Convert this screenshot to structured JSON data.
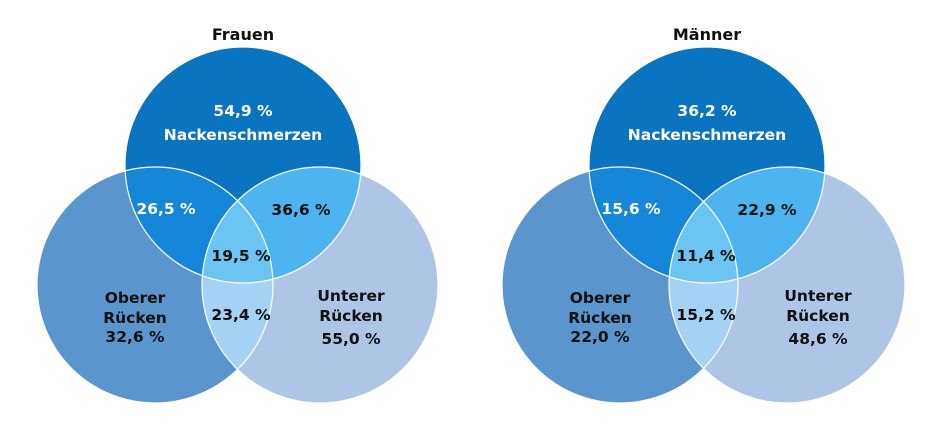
{
  "colors": {
    "neck": "#0a74c1",
    "upper_back": "#5b95ce",
    "lower_back": "#aec5e5",
    "neck_upper": "#1586d8",
    "neck_lower": "#4db4ef",
    "all_three": "#6cc4f3",
    "upper_lower": "#a4d2f4",
    "outline": "#ffffff"
  },
  "panels": [
    {
      "title": "Frauen",
      "neck": {
        "value": "54,9 %",
        "label": "Nackenschmerzen"
      },
      "upper_back": {
        "label_line1": "Oberer",
        "label_line2": "Rücken",
        "value": "32,6 %"
      },
      "lower_back": {
        "label_line1": "Unterer",
        "label_line2": "Rücken",
        "value": "55,0 %"
      },
      "neck_upper": "26,5 %",
      "neck_lower": "36,6 %",
      "all_three": "19,5 %",
      "upper_lower": "23,4 %"
    },
    {
      "title": "Männer",
      "neck": {
        "value": "36,2 %",
        "label": "Nackenschmerzen"
      },
      "upper_back": {
        "label_line1": "Oberer",
        "label_line2": "Rücken",
        "value": "22,0 %"
      },
      "lower_back": {
        "label_line1": "Unterer",
        "label_line2": "Rücken",
        "value": "48,6 %"
      },
      "neck_upper": "15,6 %",
      "neck_lower": "22,9 %",
      "all_three": "11,4 %",
      "upper_lower": "15,2 %"
    }
  ]
}
